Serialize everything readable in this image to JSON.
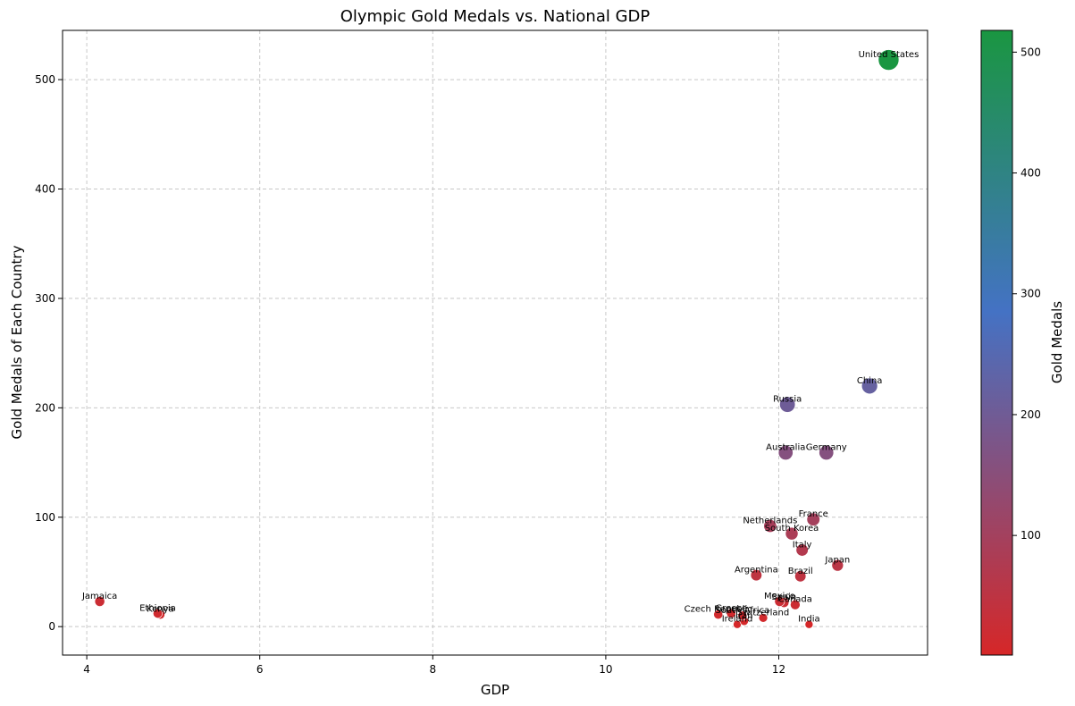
{
  "chart_data": {
    "type": "scatter",
    "title": "Olympic Gold Medals vs. National GDP",
    "xlabel": "GDP",
    "ylabel": "Gold Medals of Each Country",
    "xlim": [
      3.72,
      13.72
    ],
    "ylim": [
      -26,
      545
    ],
    "xticks": [
      4,
      6,
      8,
      10,
      12
    ],
    "yticks": [
      0,
      100,
      200,
      300,
      400,
      500
    ],
    "grid": true,
    "colorbar": {
      "label": "Gold Medals",
      "range": [
        1,
        518
      ],
      "ticks": [
        100,
        200,
        300,
        400,
        500
      ],
      "colors": [
        "#d62728",
        "#4472c4",
        "#1a9641"
      ]
    },
    "points": [
      {
        "country": "United States",
        "x": 13.27,
        "y": 518
      },
      {
        "country": "China",
        "x": 13.05,
        "y": 220
      },
      {
        "country": "Russia",
        "x": 12.1,
        "y": 203
      },
      {
        "country": "Australia",
        "x": 12.08,
        "y": 159
      },
      {
        "country": "Germany",
        "x": 12.55,
        "y": 159
      },
      {
        "country": "France",
        "x": 12.4,
        "y": 98
      },
      {
        "country": "Netherlands",
        "x": 11.9,
        "y": 92
      },
      {
        "country": "South Korea",
        "x": 12.15,
        "y": 85
      },
      {
        "country": "Italy",
        "x": 12.27,
        "y": 70
      },
      {
        "country": "Japan",
        "x": 12.68,
        "y": 56
      },
      {
        "country": "Argentina",
        "x": 11.74,
        "y": 47
      },
      {
        "country": "Brazil",
        "x": 12.25,
        "y": 46
      },
      {
        "country": "Mexico",
        "x": 12.01,
        "y": 23
      },
      {
        "country": "Spain",
        "x": 12.06,
        "y": 22
      },
      {
        "country": "Canada",
        "x": 12.19,
        "y": 20
      },
      {
        "country": "Jamaica",
        "x": 4.15,
        "y": 23
      },
      {
        "country": "Ethiopia",
        "x": 4.82,
        "y": 12
      },
      {
        "country": "Kenya",
        "x": 4.85,
        "y": 11
      },
      {
        "country": "Czech Republic",
        "x": 11.3,
        "y": 11
      },
      {
        "country": "Greece",
        "x": 11.45,
        "y": 12
      },
      {
        "country": "South Africa",
        "x": 11.58,
        "y": 10
      },
      {
        "country": "Switzerland",
        "x": 11.82,
        "y": 8
      },
      {
        "country": "Ireland",
        "x": 11.52,
        "y": 2
      },
      {
        "country": "Iran",
        "x": 11.6,
        "y": 5
      },
      {
        "country": "India",
        "x": 12.35,
        "y": 2
      }
    ]
  }
}
